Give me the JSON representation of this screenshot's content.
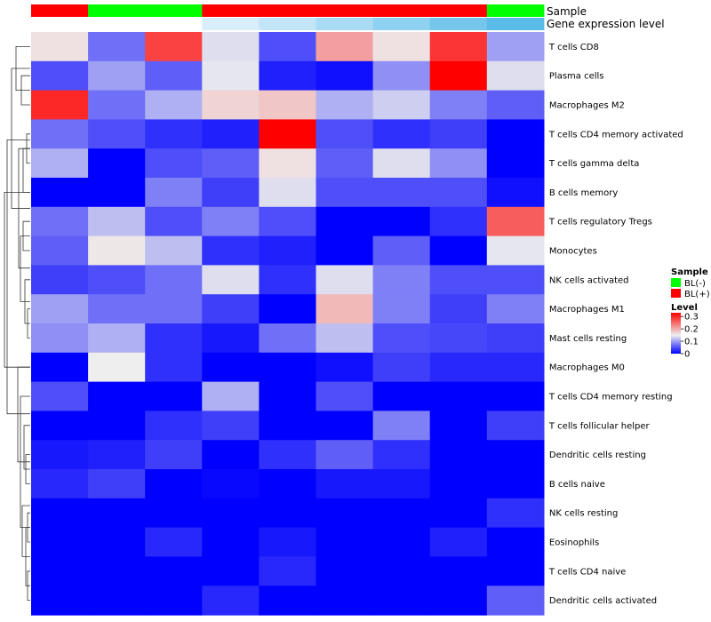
{
  "chart_data": {
    "type": "heatmap",
    "annotation_titles": [
      "Sample",
      "Gene expression level"
    ],
    "columns": [
      "",
      "",
      "",
      "",
      "",
      "",
      "",
      "",
      ""
    ],
    "sample_group": [
      "BL(+)",
      "BL(-)",
      "BL(-)",
      "BL(+)",
      "BL(+)",
      "BL(+)",
      "BL(+)",
      "BL(+)",
      "BL(-)"
    ],
    "expression_level_colors": [
      "#ffffff",
      "#ffffff",
      "#ffffff",
      "#d8eefa",
      "#c2e6f8",
      "#a9dcf4",
      "#8fd1f0",
      "#76c6ec",
      "#5bbbe8"
    ],
    "rows": [
      "T cells CD8",
      "Plasma cells",
      "Macrophages M2",
      "T cells CD4 memory activated",
      "T cells gamma delta",
      "B cells memory",
      "T cells regulatory  Tregs",
      "Monocytes",
      "NK cells activated",
      "Macrophages M1",
      "Mast cells resting",
      "Macrophages M0",
      "T cells CD4 memory resting",
      "T cells follicular helper",
      "Dendritic cells resting",
      "B cells naive",
      "NK cells resting",
      "Eosinophils",
      "T cells CD4 naive",
      "Dendritic cells activated"
    ],
    "values": [
      [
        0.16,
        0.07,
        0.28,
        0.14,
        0.05,
        0.21,
        0.16,
        0.29,
        0.1
      ],
      [
        0.05,
        0.1,
        0.06,
        0.145,
        0.02,
        0.01,
        0.09,
        0.33,
        0.14
      ],
      [
        0.3,
        0.07,
        0.11,
        0.17,
        0.18,
        0.11,
        0.13,
        0.08,
        0.06
      ],
      [
        0.07,
        0.05,
        0.03,
        0.02,
        0.33,
        0.05,
        0.03,
        0.04,
        0.0
      ],
      [
        0.11,
        0.0,
        0.05,
        0.06,
        0.16,
        0.06,
        0.14,
        0.09,
        0.0
      ],
      [
        0.0,
        0.0,
        0.08,
        0.04,
        0.14,
        0.05,
        0.05,
        0.05,
        0.01
      ],
      [
        0.07,
        0.12,
        0.05,
        0.08,
        0.05,
        0.0,
        0.0,
        0.03,
        0.26
      ],
      [
        0.06,
        0.155,
        0.12,
        0.03,
        0.02,
        0.0,
        0.06,
        0.0,
        0.145
      ],
      [
        0.04,
        0.05,
        0.07,
        0.14,
        0.03,
        0.14,
        0.08,
        0.05,
        0.05
      ],
      [
        0.1,
        0.07,
        0.07,
        0.04,
        0.0,
        0.19,
        0.08,
        0.04,
        0.08
      ],
      [
        0.09,
        0.11,
        0.03,
        0.015,
        0.07,
        0.12,
        0.05,
        0.045,
        0.04
      ],
      [
        0.0,
        0.15,
        0.03,
        0.0,
        0.0,
        0.01,
        0.04,
        0.025,
        0.025
      ],
      [
        0.05,
        0.0,
        0.0,
        0.11,
        0.0,
        0.05,
        0.0,
        0.0,
        0.0
      ],
      [
        0.0,
        0.0,
        0.03,
        0.04,
        0.0,
        0.0,
        0.08,
        0.0,
        0.04
      ],
      [
        0.015,
        0.02,
        0.04,
        0.0,
        0.03,
        0.06,
        0.03,
        0.0,
        0.0
      ],
      [
        0.025,
        0.04,
        0.0,
        0.005,
        0.0,
        0.015,
        0.015,
        0.0,
        0.0
      ],
      [
        0.0,
        0.0,
        0.0,
        0.0,
        0.0,
        0.0,
        0.0,
        0.0,
        0.03
      ],
      [
        0.0,
        0.0,
        0.025,
        0.0,
        0.015,
        0.0,
        0.0,
        0.02,
        0.0
      ],
      [
        0.0,
        0.0,
        0.0,
        0.0,
        0.025,
        0.0,
        0.0,
        0.0,
        0.0
      ],
      [
        0.0,
        0.0,
        0.0,
        0.025,
        0.0,
        0.0,
        0.0,
        0.0,
        0.06
      ]
    ],
    "color_scale": {
      "low": "#0000ff",
      "mid": "#eeeeee",
      "high": "#ff0000",
      "min": 0,
      "mid_value": 0.15,
      "max": 0.33
    },
    "sample_colors": {
      "BL(-)": "#00ff00",
      "BL(+)": "#ff0000"
    },
    "row_dendrogram": true,
    "legend": {
      "sample_title": "Sample",
      "sample_entries": [
        {
          "label": "BL(-)",
          "color": "#00ff00"
        },
        {
          "label": "BL(+)",
          "color": "#ff0000"
        }
      ],
      "level_title": "Level",
      "level_ticks": [
        "0.3",
        "0.2",
        "0.1",
        "0"
      ],
      "level_tick_values": [
        0.3,
        0.2,
        0.1,
        0
      ],
      "placement": "right"
    }
  }
}
